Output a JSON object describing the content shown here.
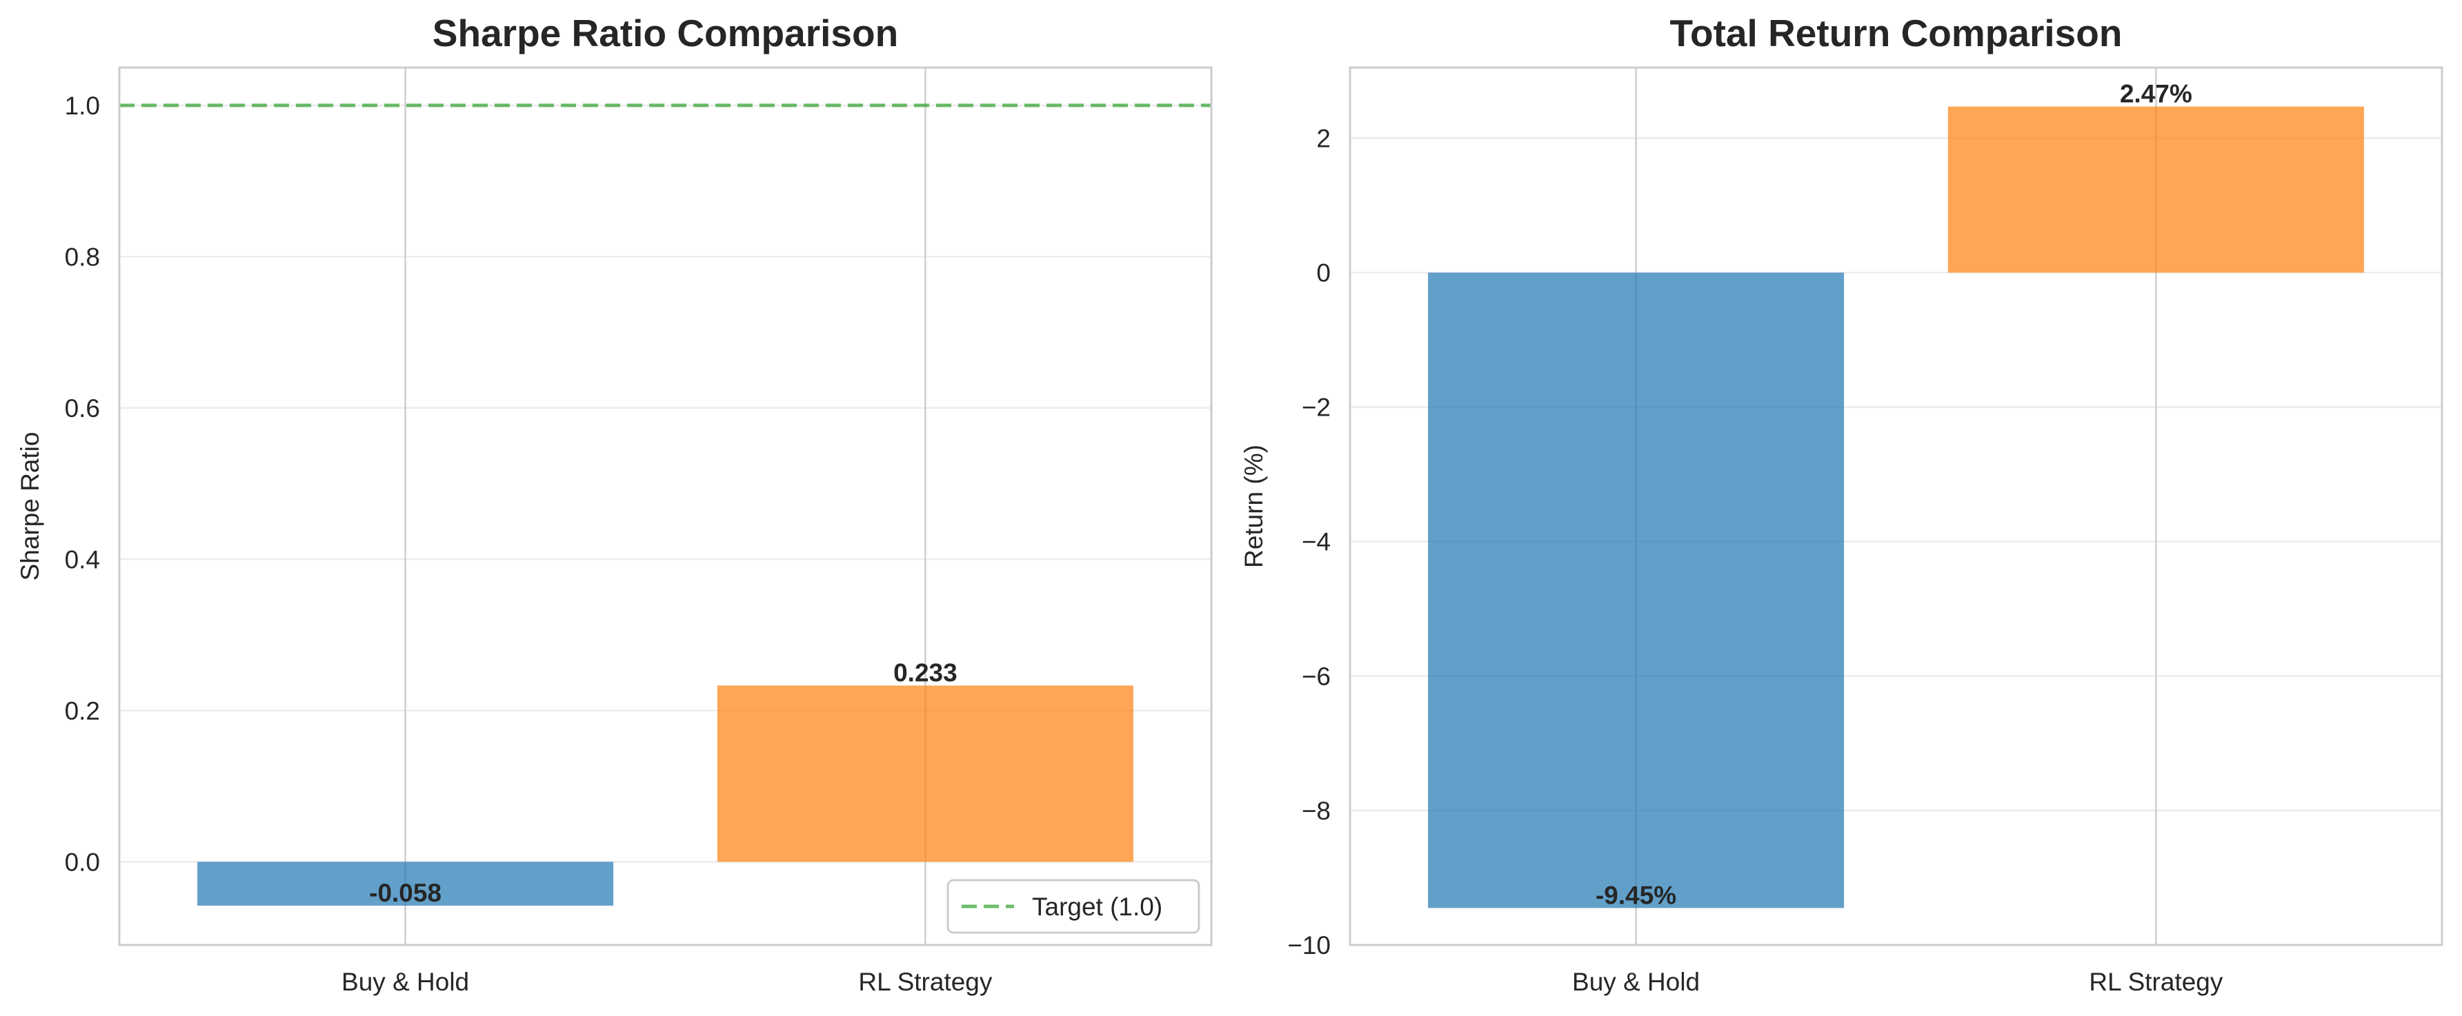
{
  "chart_data": [
    {
      "type": "bar",
      "title": "Sharpe Ratio Comparison",
      "xlabel": "",
      "ylabel": "Sharpe Ratio",
      "categories": [
        "Buy & Hold",
        "RL Strategy"
      ],
      "values": [
        -0.058,
        0.233
      ],
      "value_labels": [
        "-0.058",
        "0.233"
      ],
      "bar_colors": [
        "#1f77b4",
        "#ff7f0e"
      ],
      "ylim": [
        -0.11,
        1.05
      ],
      "yticks": [
        0.0,
        0.2,
        0.4,
        0.6,
        0.8,
        1.0
      ],
      "ytick_labels": [
        "0.0",
        "0.2",
        "0.4",
        "0.6",
        "0.8",
        "1.0"
      ],
      "reference_line": {
        "y": 1.0,
        "label": "Target (1.0)",
        "style": "dashed",
        "color": "#2ca02c"
      },
      "legend": {
        "placement": "lower-right",
        "entries": [
          "Target (1.0)"
        ]
      },
      "grid": true
    },
    {
      "type": "bar",
      "title": "Total Return Comparison",
      "xlabel": "",
      "ylabel": "Return (%)",
      "categories": [
        "Buy & Hold",
        "RL Strategy"
      ],
      "values": [
        -9.45,
        2.47
      ],
      "value_labels": [
        "-9.45%",
        "2.47%"
      ],
      "bar_colors": [
        "#1f77b4",
        "#ff7f0e"
      ],
      "ylim": [
        -10,
        3.05
      ],
      "yticks": [
        -10,
        -8,
        -6,
        -4,
        -2,
        0,
        2
      ],
      "ytick_labels": [
        "−10",
        "−8",
        "−6",
        "−4",
        "−2",
        "0",
        "2"
      ],
      "grid": true
    }
  ]
}
